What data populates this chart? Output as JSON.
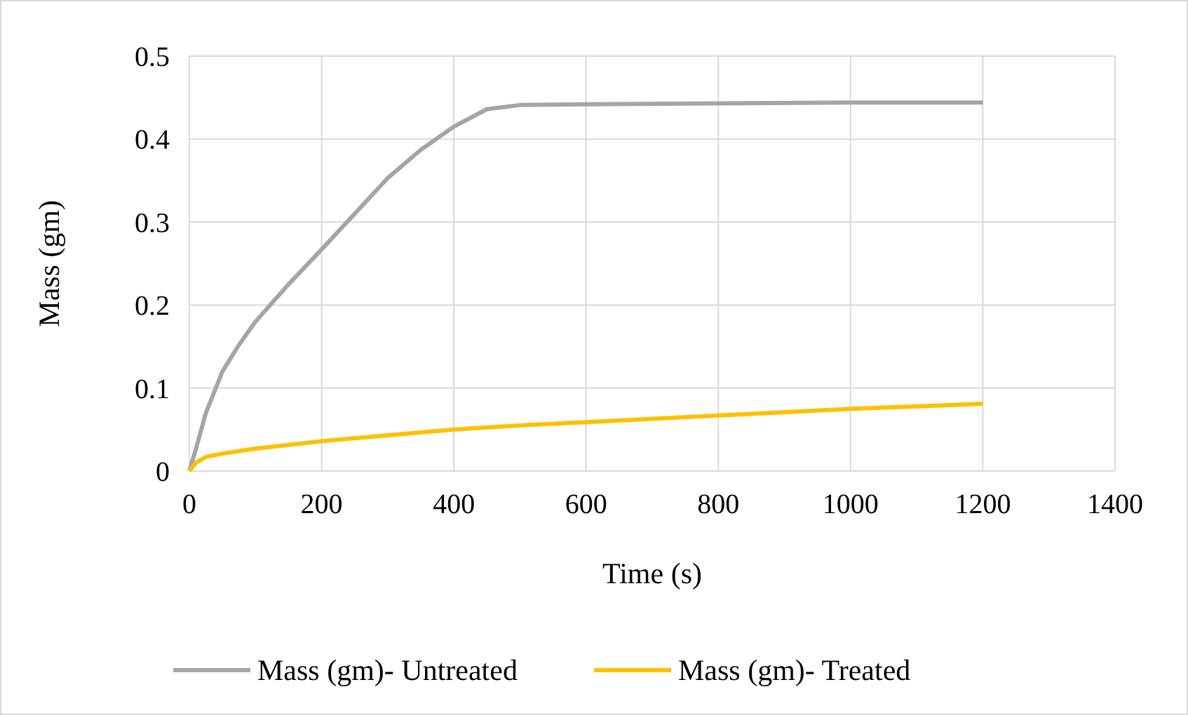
{
  "chart_data": {
    "type": "line",
    "xlabel": "Time (s)",
    "ylabel": "Mass (gm)",
    "xlim": [
      0,
      1400
    ],
    "xticks": [
      0,
      200,
      400,
      600,
      800,
      1000,
      1200,
      1400
    ],
    "ylim": [
      0,
      0.5
    ],
    "yticks": [
      0,
      0.1,
      0.2,
      0.3,
      0.4,
      0.5
    ],
    "grid": true,
    "legend": "bottom",
    "marker": "none",
    "line_style": "solid",
    "series": [
      {
        "name": "Mass (gm)- Untreated",
        "color": "#a5a5a5",
        "x": [
          0,
          10,
          25,
          50,
          75,
          100,
          150,
          200,
          250,
          300,
          350,
          400,
          450,
          500,
          600,
          800,
          1000,
          1200
        ],
        "values": [
          0,
          0.027,
          0.07,
          0.12,
          0.152,
          0.18,
          0.225,
          0.267,
          0.31,
          0.353,
          0.387,
          0.415,
          0.436,
          0.441,
          0.442,
          0.443,
          0.444,
          0.444
        ]
      },
      {
        "name": "Mass (gm)- Treated",
        "color": "#ffc000",
        "x": [
          0,
          10,
          25,
          50,
          100,
          200,
          300,
          400,
          500,
          600,
          700,
          800,
          900,
          1000,
          1100,
          1200
        ],
        "values": [
          0,
          0.01,
          0.017,
          0.021,
          0.027,
          0.036,
          0.043,
          0.05,
          0.055,
          0.059,
          0.063,
          0.067,
          0.071,
          0.075,
          0.078,
          0.081
        ]
      }
    ]
  }
}
